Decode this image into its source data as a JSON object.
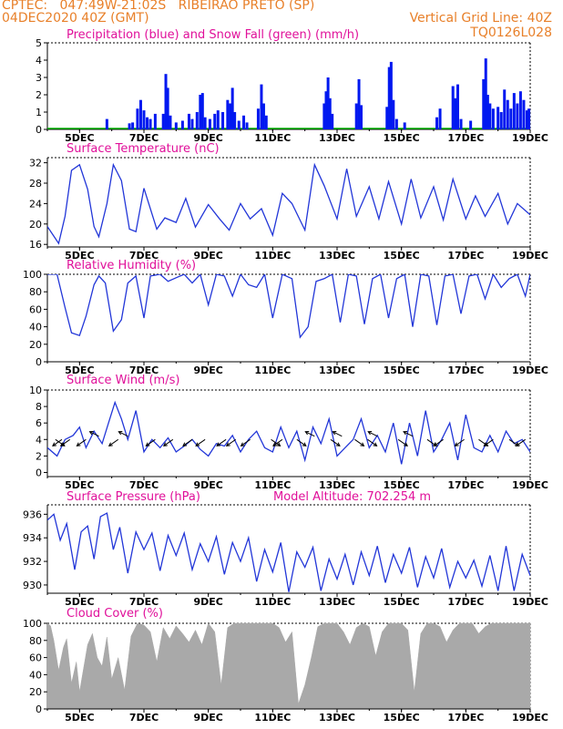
{
  "header": {
    "line1_left": "CPTEC:   047:49W-21:02S   RIBEIRAO PRETO (SP)",
    "line2_left": "04DEC2020 40Z (GMT)",
    "line2_right": "Vertical Grid Line: 40Z",
    "line3_right": "TQ0126L028"
  },
  "colors": {
    "header": "#e8802a",
    "title": "#e0109a",
    "precip": "#0018f0",
    "snow": "#00b000",
    "line": "#2236d8",
    "wind_arrow": "#000000",
    "cloud": "#a9a9a9"
  },
  "x_axis": {
    "ticks": [
      "5DEC",
      "7DEC",
      "9DEC",
      "11DEC",
      "13DEC",
      "15DEC",
      "17DEC",
      "19DEC"
    ]
  },
  "chart_data": [
    {
      "id": "precip",
      "type": "bar",
      "title": "Precipitation (blue) and Snow Fall (green) (mm/h)",
      "ylim": [
        0,
        5
      ],
      "yticks": [
        0,
        1,
        2,
        3,
        4,
        5
      ],
      "events": [
        {
          "day": 5.85,
          "v": 0.6
        },
        {
          "day": 6.55,
          "v": 0.35
        },
        {
          "day": 6.65,
          "v": 0.4
        },
        {
          "day": 6.8,
          "v": 1.2
        },
        {
          "day": 6.9,
          "v": 1.7
        },
        {
          "day": 7.0,
          "v": 1.1
        },
        {
          "day": 7.1,
          "v": 0.7
        },
        {
          "day": 7.2,
          "v": 0.6
        },
        {
          "day": 7.35,
          "v": 0.9
        },
        {
          "day": 7.6,
          "v": 0.9
        },
        {
          "day": 7.68,
          "v": 3.2
        },
        {
          "day": 7.74,
          "v": 2.4
        },
        {
          "day": 7.82,
          "v": 0.8
        },
        {
          "day": 8.0,
          "v": 0.4
        },
        {
          "day": 8.2,
          "v": 0.5
        },
        {
          "day": 8.4,
          "v": 0.9
        },
        {
          "day": 8.5,
          "v": 0.6
        },
        {
          "day": 8.65,
          "v": 1.0
        },
        {
          "day": 8.75,
          "v": 2.0
        },
        {
          "day": 8.82,
          "v": 2.1
        },
        {
          "day": 8.9,
          "v": 0.7
        },
        {
          "day": 9.05,
          "v": 0.6
        },
        {
          "day": 9.2,
          "v": 0.9
        },
        {
          "day": 9.3,
          "v": 1.1
        },
        {
          "day": 9.45,
          "v": 1.0
        },
        {
          "day": 9.6,
          "v": 1.7
        },
        {
          "day": 9.68,
          "v": 1.5
        },
        {
          "day": 9.75,
          "v": 2.4
        },
        {
          "day": 9.82,
          "v": 1.0
        },
        {
          "day": 9.95,
          "v": 0.5
        },
        {
          "day": 10.1,
          "v": 0.8
        },
        {
          "day": 10.2,
          "v": 0.4
        },
        {
          "day": 10.55,
          "v": 1.2
        },
        {
          "day": 10.65,
          "v": 2.6
        },
        {
          "day": 10.72,
          "v": 1.5
        },
        {
          "day": 10.8,
          "v": 0.8
        },
        {
          "day": 12.6,
          "v": 1.5
        },
        {
          "day": 12.66,
          "v": 2.2
        },
        {
          "day": 12.72,
          "v": 3.0
        },
        {
          "day": 12.78,
          "v": 1.8
        },
        {
          "day": 12.85,
          "v": 0.9
        },
        {
          "day": 13.6,
          "v": 1.5
        },
        {
          "day": 13.68,
          "v": 2.9
        },
        {
          "day": 13.75,
          "v": 1.4
        },
        {
          "day": 14.55,
          "v": 1.3
        },
        {
          "day": 14.62,
          "v": 3.6
        },
        {
          "day": 14.68,
          "v": 3.9
        },
        {
          "day": 14.75,
          "v": 1.7
        },
        {
          "day": 14.85,
          "v": 0.6
        },
        {
          "day": 15.1,
          "v": 0.4
        },
        {
          "day": 16.1,
          "v": 0.7
        },
        {
          "day": 16.2,
          "v": 1.2
        },
        {
          "day": 16.6,
          "v": 2.5
        },
        {
          "day": 16.68,
          "v": 1.8
        },
        {
          "day": 16.75,
          "v": 2.6
        },
        {
          "day": 16.85,
          "v": 0.6
        },
        {
          "day": 17.15,
          "v": 0.5
        },
        {
          "day": 17.55,
          "v": 2.9
        },
        {
          "day": 17.62,
          "v": 4.1
        },
        {
          "day": 17.68,
          "v": 2.0
        },
        {
          "day": 17.75,
          "v": 1.5
        },
        {
          "day": 17.85,
          "v": 1.2
        },
        {
          "day": 18.0,
          "v": 1.3
        },
        {
          "day": 18.1,
          "v": 1.0
        },
        {
          "day": 18.2,
          "v": 2.3
        },
        {
          "day": 18.3,
          "v": 1.7
        },
        {
          "day": 18.4,
          "v": 1.2
        },
        {
          "day": 18.5,
          "v": 2.1
        },
        {
          "day": 18.6,
          "v": 1.5
        },
        {
          "day": 18.7,
          "v": 2.2
        },
        {
          "day": 18.8,
          "v": 1.7
        },
        {
          "day": 18.9,
          "v": 1.1
        },
        {
          "day": 18.96,
          "v": 1.2
        }
      ],
      "snow": 0
    },
    {
      "id": "temp",
      "type": "line",
      "title": "Surface Temperature (nC)",
      "ylim": [
        15.5,
        33
      ],
      "yticks": [
        16,
        20,
        24,
        28,
        32
      ],
      "x": [
        4.0,
        4.35,
        4.55,
        4.75,
        5.0,
        5.25,
        5.45,
        5.6,
        5.85,
        6.05,
        6.3,
        6.55,
        6.75,
        7.0,
        7.4,
        7.65,
        8.0,
        8.3,
        8.6,
        9.0,
        9.35,
        9.65,
        10.0,
        10.3,
        10.65,
        11.0,
        11.3,
        11.6,
        12.0,
        12.3,
        12.6,
        13.0,
        13.3,
        13.6,
        14.0,
        14.3,
        14.6,
        15.0,
        15.3,
        15.6,
        16.0,
        16.3,
        16.6,
        17.0,
        17.3,
        17.6,
        18.0,
        18.3,
        18.6,
        19.0
      ],
      "y": [
        19.5,
        16.2,
        21.5,
        30.5,
        31.6,
        26.8,
        19.5,
        17.5,
        24.0,
        31.6,
        28.5,
        19.0,
        18.5,
        27.0,
        19.0,
        21.2,
        20.3,
        25.0,
        19.4,
        23.8,
        21.0,
        18.8,
        24.0,
        21.0,
        23.0,
        17.8,
        26.0,
        24.0,
        18.8,
        31.6,
        27.5,
        21.0,
        30.8,
        21.5,
        27.3,
        21.0,
        28.3,
        20.0,
        28.8,
        21.2,
        27.3,
        20.8,
        28.8,
        21.0,
        25.5,
        21.5,
        26.0,
        20.0,
        24.0,
        21.8
      ]
    },
    {
      "id": "rh",
      "type": "line",
      "title": "Relative Humidity (%)",
      "ylim": [
        0,
        100
      ],
      "yticks": [
        0,
        20,
        40,
        60,
        80,
        100
      ],
      "x": [
        4.0,
        4.3,
        4.55,
        4.75,
        5.0,
        5.2,
        5.45,
        5.6,
        5.8,
        6.05,
        6.3,
        6.5,
        6.75,
        7.0,
        7.2,
        7.5,
        7.75,
        8.0,
        8.25,
        8.5,
        8.75,
        9.0,
        9.25,
        9.5,
        9.75,
        10.0,
        10.25,
        10.5,
        10.75,
        11.0,
        11.3,
        11.6,
        11.85,
        12.1,
        12.35,
        12.6,
        12.85,
        13.1,
        13.35,
        13.6,
        13.85,
        14.1,
        14.35,
        14.6,
        14.85,
        15.1,
        15.35,
        15.6,
        15.85,
        16.1,
        16.35,
        16.6,
        16.85,
        17.1,
        17.35,
        17.6,
        17.85,
        18.1,
        18.35,
        18.6,
        18.85,
        19.0
      ],
      "y": [
        100,
        100,
        62,
        33,
        30,
        52,
        88,
        98,
        90,
        35,
        48,
        90,
        98,
        50,
        98,
        100,
        92,
        96,
        100,
        90,
        100,
        65,
        100,
        98,
        75,
        100,
        88,
        85,
        100,
        50,
        100,
        95,
        28,
        40,
        92,
        95,
        100,
        45,
        100,
        98,
        43,
        95,
        100,
        50,
        95,
        100,
        40,
        100,
        98,
        42,
        98,
        100,
        55,
        98,
        100,
        72,
        100,
        85,
        95,
        100,
        75,
        100
      ]
    },
    {
      "id": "wind",
      "type": "line",
      "title": "Surface Wind (m/s)",
      "ylim": [
        -0.5,
        10
      ],
      "yticks": [
        0,
        2,
        4,
        6,
        8,
        10
      ],
      "x": [
        4.0,
        4.3,
        4.55,
        4.8,
        5.0,
        5.2,
        5.45,
        5.7,
        5.9,
        6.1,
        6.3,
        6.5,
        6.75,
        7.0,
        7.25,
        7.5,
        7.75,
        8.0,
        8.25,
        8.5,
        8.75,
        9.0,
        9.25,
        9.5,
        9.75,
        10.0,
        10.25,
        10.5,
        10.75,
        11.0,
        11.25,
        11.5,
        11.75,
        12.0,
        12.25,
        12.5,
        12.75,
        13.0,
        13.25,
        13.5,
        13.75,
        14.0,
        14.25,
        14.5,
        14.75,
        15.0,
        15.25,
        15.5,
        15.75,
        16.0,
        16.25,
        16.5,
        16.75,
        17.0,
        17.25,
        17.5,
        17.75,
        18.0,
        18.25,
        18.5,
        18.75,
        19.0
      ],
      "y": [
        3.0,
        2.0,
        4.0,
        4.5,
        5.5,
        3.0,
        5.0,
        3.5,
        6.0,
        8.5,
        6.5,
        4.0,
        7.5,
        2.5,
        4.0,
        3.0,
        4.2,
        2.5,
        3.2,
        4.0,
        2.8,
        2.0,
        3.5,
        3.2,
        4.5,
        2.5,
        4.0,
        5.0,
        3.0,
        2.5,
        5.5,
        3.0,
        5.0,
        1.5,
        5.5,
        3.5,
        6.5,
        2.0,
        3.0,
        4.0,
        6.5,
        3.0,
        4.5,
        2.5,
        6.0,
        1.0,
        6.0,
        2.0,
        7.5,
        2.5,
        4.0,
        6.0,
        1.5,
        7.0,
        3.0,
        2.5,
        4.5,
        2.5,
        5.0,
        3.5,
        4.0,
        2.5
      ]
    },
    {
      "id": "pressure",
      "type": "line",
      "title": "Surface Pressure (hPa)",
      "annotation": "Model Altitude: 702.254 m",
      "ylim": [
        929.3,
        936.8
      ],
      "yticks": [
        930,
        932,
        934,
        936
      ],
      "x": [
        4.0,
        4.2,
        4.4,
        4.6,
        4.85,
        5.05,
        5.25,
        5.45,
        5.65,
        5.85,
        6.05,
        6.25,
        6.5,
        6.75,
        7.0,
        7.25,
        7.5,
        7.75,
        8.0,
        8.25,
        8.5,
        8.75,
        9.0,
        9.25,
        9.5,
        9.75,
        10.0,
        10.25,
        10.5,
        10.75,
        11.0,
        11.25,
        11.5,
        11.75,
        12.0,
        12.25,
        12.5,
        12.75,
        13.0,
        13.25,
        13.5,
        13.75,
        14.0,
        14.25,
        14.5,
        14.75,
        15.0,
        15.25,
        15.5,
        15.75,
        16.0,
        16.25,
        16.5,
        16.75,
        17.0,
        17.25,
        17.5,
        17.75,
        18.0,
        18.25,
        18.5,
        18.75,
        19.0
      ],
      "y": [
        935.5,
        936.0,
        933.8,
        935.2,
        931.3,
        934.5,
        935.0,
        932.2,
        935.8,
        936.1,
        933.0,
        934.9,
        931.0,
        934.5,
        933.0,
        934.4,
        931.2,
        934.2,
        932.5,
        934.4,
        931.3,
        933.5,
        932.0,
        934.1,
        930.9,
        933.6,
        932.0,
        934.0,
        930.3,
        933.0,
        931.1,
        933.6,
        929.4,
        932.8,
        931.5,
        933.2,
        929.5,
        932.2,
        930.5,
        932.6,
        930.0,
        932.8,
        930.8,
        933.3,
        930.2,
        932.6,
        931.0,
        933.2,
        929.8,
        932.4,
        930.6,
        933.1,
        929.8,
        932.0,
        930.6,
        932.1,
        929.9,
        932.5,
        929.5,
        933.3,
        929.5,
        932.6,
        930.8
      ]
    },
    {
      "id": "cloud",
      "type": "area",
      "title": "Cloud Cover (%)",
      "ylim": [
        0,
        100
      ],
      "yticks": [
        0,
        20,
        40,
        60,
        80,
        100
      ],
      "x": [
        4.0,
        4.1,
        4.2,
        4.35,
        4.5,
        4.6,
        4.75,
        4.9,
        5.0,
        5.1,
        5.25,
        5.4,
        5.55,
        5.7,
        5.85,
        6.0,
        6.2,
        6.4,
        6.6,
        6.8,
        7.0,
        7.2,
        7.4,
        7.6,
        7.8,
        8.0,
        8.2,
        8.4,
        8.6,
        8.8,
        9.0,
        9.2,
        9.4,
        9.6,
        9.8,
        10.0,
        10.2,
        10.4,
        10.6,
        10.8,
        11.0,
        11.2,
        11.4,
        11.6,
        11.8,
        12.0,
        12.2,
        12.4,
        12.6,
        12.8,
        13.0,
        13.2,
        13.4,
        13.6,
        13.8,
        14.0,
        14.2,
        14.4,
        14.6,
        14.8,
        15.0,
        15.2,
        15.4,
        15.6,
        15.8,
        16.0,
        16.2,
        16.4,
        16.6,
        16.8,
        17.0,
        17.2,
        17.4,
        17.6,
        17.8,
        18.0,
        18.2,
        18.4,
        18.6,
        18.8,
        19.0
      ],
      "y": [
        100,
        97,
        80,
        45,
        72,
        82,
        30,
        55,
        20,
        42,
        75,
        88,
        60,
        50,
        84,
        35,
        60,
        22,
        85,
        100,
        98,
        90,
        55,
        95,
        82,
        97,
        88,
        78,
        92,
        75,
        100,
        90,
        28,
        95,
        100,
        100,
        100,
        100,
        100,
        100,
        100,
        95,
        78,
        90,
        6,
        28,
        60,
        96,
        100,
        100,
        100,
        90,
        75,
        95,
        100,
        96,
        62,
        90,
        100,
        100,
        100,
        92,
        20,
        88,
        100,
        100,
        96,
        78,
        92,
        100,
        100,
        100,
        88,
        96,
        100,
        100,
        100,
        100,
        100,
        100,
        100
      ]
    }
  ]
}
